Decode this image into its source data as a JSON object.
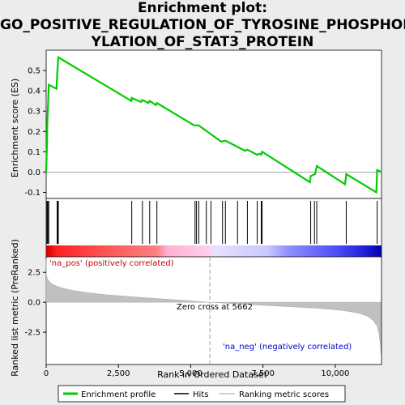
{
  "title_lines": [
    "Enrichment plot:",
    "GO_POSITIVE_REGULATION_OF_TYROSINE_PHOSPHOR",
    "YLATION_OF_STAT3_PROTEIN"
  ],
  "colors": {
    "es_line": "#00cc00",
    "hits": "#000000",
    "pos_text": "#cc0000",
    "neg_text": "#0000cc",
    "metric_fill": "#c0c0c0",
    "zero_line": "#a0a0a0"
  },
  "chart_data": [
    {
      "type": "line",
      "name": "enrichment-plot",
      "ylabel": "Enrichment score (ES)",
      "xlim": [
        0,
        11600
      ],
      "ylim": [
        -0.13,
        0.6
      ],
      "y_ticks": [
        -0.1,
        0.0,
        0.1,
        0.2,
        0.3,
        0.4,
        0.5
      ],
      "y_tick_labels": [
        "-0.1",
        "0.0",
        "0.1",
        "0.2",
        "0.3",
        "0.4",
        "0.5"
      ],
      "series": [
        {
          "name": "Enrichment profile",
          "x": [
            0,
            30,
            40,
            60,
            90,
            360,
            380,
            400,
            420,
            2950,
            2960,
            3280,
            3330,
            3540,
            3580,
            3800,
            3830,
            5120,
            5280,
            6050,
            6200,
            6880,
            6960,
            7300,
            7380,
            7440,
            7470,
            9120,
            9150,
            9300,
            9320,
            9360,
            10340,
            10380,
            11420,
            11450,
            11600
          ],
          "y": [
            0.0,
            0.15,
            0.24,
            0.31,
            0.43,
            0.41,
            0.48,
            0.52,
            0.565,
            0.35,
            0.365,
            0.345,
            0.355,
            0.34,
            0.35,
            0.33,
            0.34,
            0.23,
            0.23,
            0.15,
            0.155,
            0.105,
            0.11,
            0.085,
            0.09,
            0.085,
            0.1,
            -0.05,
            -0.02,
            -0.01,
            0.0,
            0.03,
            -0.06,
            -0.01,
            -0.1,
            0.01,
            0.0
          ]
        }
      ]
    },
    {
      "type": "scatter",
      "name": "hits",
      "x": [
        30,
        40,
        60,
        90,
        380,
        400,
        420,
        2960,
        3330,
        3580,
        3830,
        5150,
        5200,
        5280,
        5540,
        5700,
        6100,
        6200,
        6620,
        6960,
        7300,
        7440,
        7470,
        9150,
        9280,
        9360,
        10380,
        11450
      ]
    },
    {
      "type": "area",
      "name": "ranked-list-metric",
      "ylabel": "Ranked list metric (PreRanked)",
      "xlabel": "Rank in Ordered Dataset",
      "xlim": [
        0,
        11600
      ],
      "ylim": [
        -5.2,
        3.8
      ],
      "x_ticks": [
        0,
        2500,
        5000,
        7500,
        10000
      ],
      "x_tick_labels": [
        "0",
        "2,500",
        "5,000",
        "7,500",
        "10,000"
      ],
      "y_ticks": [
        -2.5,
        0.0,
        2.5
      ],
      "y_tick_labels": [
        "-2.5",
        "0.0",
        "2.5"
      ],
      "x": [
        0,
        10,
        50,
        100,
        200,
        400,
        700,
        1000,
        1500,
        2000,
        3000,
        4000,
        5000,
        5662,
        6500,
        7500,
        8500,
        9500,
        10300,
        10800,
        11100,
        11300,
        11450,
        11520,
        11560,
        11580
      ],
      "values": [
        3.6,
        2.2,
        1.95,
        1.75,
        1.55,
        1.3,
        1.1,
        0.95,
        0.78,
        0.65,
        0.45,
        0.28,
        0.12,
        0.0,
        -0.12,
        -0.25,
        -0.38,
        -0.52,
        -0.7,
        -0.9,
        -1.15,
        -1.5,
        -2.0,
        -2.7,
        -3.6,
        -4.3
      ],
      "zero_cross": 5662,
      "annotations": {
        "zero_cross": "Zero cross at 5662",
        "pos": "'na_pos' (positively correlated)",
        "neg": "'na_neg' (negatively correlated)"
      }
    }
  ],
  "legend": [
    {
      "name": "Enrichment profile"
    },
    {
      "name": "Hits"
    },
    {
      "name": "Ranking metric scores"
    }
  ]
}
